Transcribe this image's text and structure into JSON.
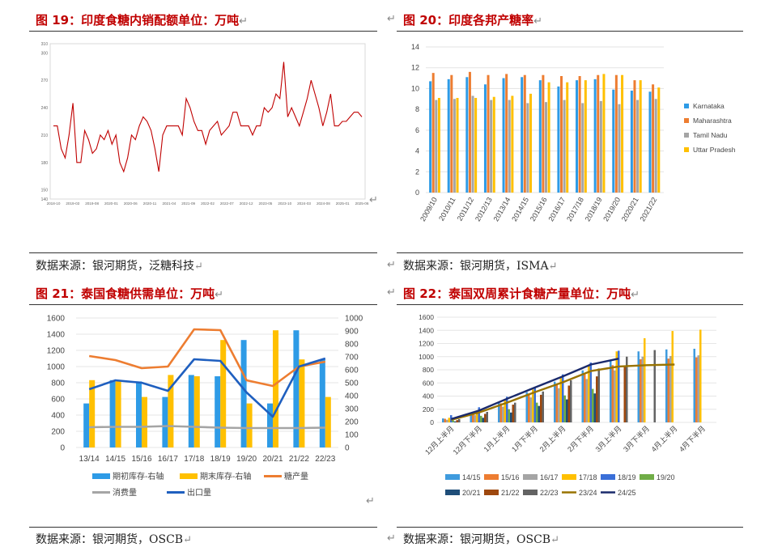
{
  "panels": [
    {
      "title": "图 19：印度食糖内销配额单位：万吨",
      "source": "数据来源：银河期货，泛糖科技"
    },
    {
      "title": "图 20：印度各邦产糖率",
      "source": "数据来源：银河期货，ISMA"
    },
    {
      "title": "图 21：泰国食糖供需单位：万吨",
      "source": "数据来源：银河期货，OSCB"
    },
    {
      "title": "图 22：泰国双周累计食糖产量单位：万吨",
      "source": "数据来源：银河期货，OSCB"
    }
  ],
  "para_mark": "↵",
  "colors": {
    "red": "#c00000",
    "blue": "#4472c4",
    "lblue": "#2e9be6",
    "orange": "#ed7d31",
    "gray": "#a5a5a5",
    "gold": "#ffc000",
    "navy": "#1f3f8f"
  },
  "chart_data": [
    {
      "type": "line",
      "title": "图 19：印度食糖内销配额单位：万吨",
      "ylim": [
        140,
        310
      ],
      "yticks": [
        140,
        150,
        180,
        210,
        240,
        270,
        300,
        310
      ],
      "xticks": [
        "2018-10",
        "2019-03",
        "2019-08",
        "2020-01",
        "2020-06",
        "2020-11",
        "2021-04",
        "2021-09",
        "2022-02",
        "2022-07",
        "2022-12",
        "2023-05",
        "2023-10",
        "2024-03",
        "2024-08",
        "2025-01",
        "2025-06"
      ],
      "series": [
        {
          "name": "内销配额",
          "values": [
            220,
            220,
            195,
            185,
            210,
            245,
            180,
            180,
            215,
            205,
            190,
            195,
            210,
            205,
            215,
            200,
            210,
            180,
            170,
            185,
            210,
            205,
            220,
            230,
            225,
            215,
            195,
            170,
            210,
            220,
            220,
            220,
            220,
            210,
            250,
            240,
            225,
            215,
            215,
            200,
            215,
            220,
            225,
            210,
            215,
            220,
            235,
            235,
            220,
            220,
            220,
            210,
            220,
            220,
            240,
            235,
            240,
            255,
            250,
            290,
            230,
            240,
            230,
            220,
            235,
            250,
            270,
            255,
            240,
            220,
            235,
            255,
            220,
            220,
            225,
            225,
            230,
            235,
            235,
            230
          ]
        }
      ]
    },
    {
      "type": "bar",
      "title": "图 20：印度各邦产糖率",
      "ylim": [
        0,
        14
      ],
      "yticks": [
        0,
        2,
        4,
        6,
        8,
        10,
        12,
        14
      ],
      "categories": [
        "2009/10",
        "2010/11",
        "2011/12",
        "2012/13",
        "2013/14",
        "2014/15",
        "2015/16",
        "2016/17",
        "2017/18",
        "2018/19",
        "2019/20",
        "2020/21",
        "2021/22"
      ],
      "series": [
        {
          "name": "Karnataka",
          "values": [
            10.7,
            10.9,
            11.1,
            10.4,
            11.0,
            11.1,
            10.8,
            10.2,
            10.8,
            10.9,
            9.9,
            9.8,
            9.7
          ]
        },
        {
          "name": "Maharashtra",
          "values": [
            11.5,
            11.3,
            11.6,
            11.3,
            11.4,
            11.3,
            11.3,
            11.2,
            11.2,
            11.3,
            11.3,
            10.8,
            10.4
          ]
        },
        {
          "name": "Tamil Nadu",
          "values": [
            8.9,
            9.0,
            9.3,
            8.9,
            8.9,
            8.6,
            8.7,
            8.9,
            8.6,
            8.8,
            8.5,
            8.9,
            9.0
          ]
        },
        {
          "name": "Uttar Pradesh",
          "values": [
            9.1,
            9.1,
            9.1,
            9.2,
            9.3,
            9.5,
            10.6,
            10.6,
            10.8,
            11.4,
            11.3,
            10.8,
            10.1
          ]
        }
      ]
    },
    {
      "type": "bar+line",
      "title": "图 21：泰国食糖供需单位：万吨",
      "categories": [
        "13/14",
        "14/15",
        "15/16",
        "16/17",
        "17/18",
        "18/19",
        "19/20",
        "20/21",
        "21/22",
        "22/23"
      ],
      "ylim_left": [
        0,
        1600
      ],
      "yticks_left": [
        0,
        200,
        400,
        600,
        800,
        1000,
        1200,
        1400,
        1600
      ],
      "ylim_right": [
        0,
        1000
      ],
      "yticks_right": [
        0,
        100,
        200,
        300,
        400,
        500,
        600,
        700,
        800,
        900,
        1000
      ],
      "series": [
        {
          "name": "期初库存-右轴",
          "kind": "bar",
          "axis": "right",
          "values": [
            340,
            520,
            510,
            390,
            560,
            550,
            830,
            340,
            905,
            680
          ]
        },
        {
          "name": "期末库存-右轴",
          "kind": "bar",
          "axis": "right",
          "values": [
            520,
            510,
            390,
            560,
            550,
            830,
            340,
            905,
            680,
            390
          ]
        },
        {
          "name": "糖产量",
          "kind": "line",
          "axis": "left",
          "values": [
            1130,
            1080,
            980,
            1000,
            1460,
            1450,
            830,
            760,
            1000,
            1060
          ]
        },
        {
          "name": "消费量",
          "kind": "line",
          "axis": "left",
          "values": [
            250,
            255,
            255,
            265,
            255,
            245,
            240,
            240,
            240,
            245
          ]
        },
        {
          "name": "出口量",
          "kind": "line",
          "axis": "left",
          "values": [
            720,
            830,
            800,
            700,
            1090,
            1070,
            680,
            380,
            1000,
            1100
          ]
        }
      ]
    },
    {
      "type": "bar+line",
      "title": "图 22：泰国双周累计食糖产量单位：万吨",
      "ylim": [
        0,
        1600
      ],
      "yticks": [
        0,
        200,
        400,
        600,
        800,
        1000,
        1200,
        1400,
        1600
      ],
      "categories": [
        "12月上半月",
        "12月下半月",
        "1月上半月",
        "1月下半月",
        "2月上半月",
        "2月下半月",
        "3月上半月",
        "3月下半月",
        "4月上半月",
        "4月下半月"
      ],
      "series": [
        {
          "name": "14/15",
          "values": [
            60,
            150,
            300,
            460,
            620,
            790,
            950,
            1080,
            1110,
            1120
          ]
        },
        {
          "name": "15/16",
          "values": [
            55,
            140,
            290,
            440,
            580,
            730,
            870,
            960,
            970,
            990
          ]
        },
        {
          "name": "16/17",
          "values": [
            40,
            110,
            240,
            380,
            520,
            660,
            790,
            1000,
            1010,
            1020
          ]
        },
        {
          "name": "17/18",
          "values": [
            70,
            180,
            340,
            500,
            680,
            870,
            1080,
            1280,
            1390,
            1410
          ]
        },
        {
          "name": "18/19",
          "values": [
            110,
            230,
            390,
            540,
            730,
            910,
            1090,
            null,
            null,
            null
          ]
        },
        {
          "name": "19/20",
          "values": [
            30,
            100,
            200,
            300,
            410,
            510,
            null,
            null,
            null,
            null
          ]
        },
        {
          "name": "20/21",
          "values": [
            15,
            70,
            150,
            250,
            350,
            440,
            null,
            null,
            null,
            null
          ]
        },
        {
          "name": "21/22",
          "values": [
            35,
            130,
            270,
            420,
            560,
            700,
            860,
            null,
            null,
            null
          ]
        },
        {
          "name": "22/23",
          "values": [
            50,
            160,
            300,
            470,
            640,
            820,
            1000,
            1100,
            null,
            null
          ]
        },
        {
          "name": "23/24",
          "values": [
            40,
            150,
            300,
            460,
            610,
            780,
            850,
            870,
            880,
            null
          ]
        },
        {
          "name": "24/25",
          "values": [
            50,
            180,
            360,
            530,
            700,
            880,
            970,
            null,
            null,
            null
          ]
        }
      ]
    }
  ]
}
